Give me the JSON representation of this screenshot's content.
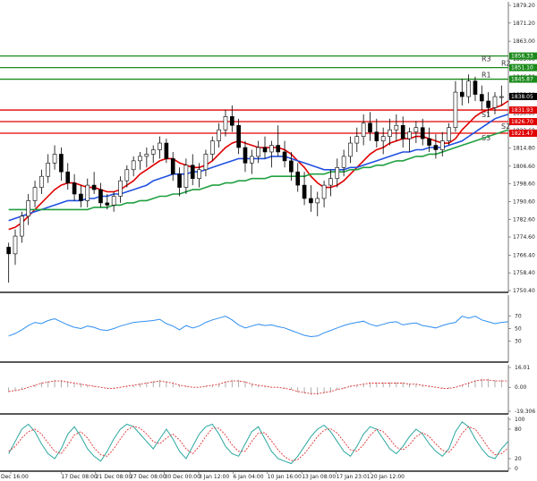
{
  "chart_data": {
    "type": "candlestick",
    "price_axis": {
      "ticks": [
        "1879.20",
        "1871.20",
        "1863.00",
        "1855.00",
        "1846.80",
        "1838.80",
        "1830.60",
        "1822.60",
        "1814.80",
        "1806.60",
        "1798.60",
        "1790.60",
        "1782.60",
        "1774.60",
        "1766.40",
        "1758.40",
        "1750.40"
      ],
      "ylim": [
        1750.4,
        1879.2
      ]
    },
    "current_price": "1838.05",
    "levels": [
      {
        "name": "R3",
        "value": "1856.33",
        "color": "#1a8a1a"
      },
      {
        "name": "R2",
        "value": "1851.10",
        "color": "#1a8a1a"
      },
      {
        "name": "R1",
        "value": "1845.87",
        "color": "#1a8a1a"
      },
      {
        "name": "S1",
        "value": "1831.93",
        "color": "#e00000"
      },
      {
        "name": "S2",
        "value": "1826.70",
        "color": "#e00000"
      },
      {
        "name": "S3",
        "value": "1821.47",
        "color": "#e00000"
      }
    ],
    "x_labels": [
      "Dec 16:00",
      "17 Dec 08:00",
      "21 Dec 08:00",
      "27 Dec 08:00",
      "30 Dec 00:00",
      "3 Jan 12:00",
      "6 Jan 04:00",
      "10 Jan 16:00",
      "13 Jan 08:00",
      "17 Jan 23:01",
      "20 Jan 12:00"
    ],
    "candles": [
      [
        1770,
        1772,
        1754,
        1767
      ],
      [
        1767,
        1778,
        1762,
        1775
      ],
      [
        1775,
        1786,
        1772,
        1784
      ],
      [
        1784,
        1794,
        1780,
        1791
      ],
      [
        1791,
        1800,
        1788,
        1797
      ],
      [
        1797,
        1805,
        1794,
        1802
      ],
      [
        1802,
        1812,
        1799,
        1808
      ],
      [
        1808,
        1816,
        1805,
        1812
      ],
      [
        1812,
        1815,
        1800,
        1804
      ],
      [
        1804,
        1808,
        1796,
        1799
      ],
      [
        1799,
        1803,
        1791,
        1794
      ],
      [
        1794,
        1798,
        1788,
        1791
      ],
      [
        1791,
        1801,
        1788,
        1798
      ],
      [
        1798,
        1804,
        1794,
        1796
      ],
      [
        1796,
        1799,
        1788,
        1790
      ],
      [
        1790,
        1794,
        1787,
        1789
      ],
      [
        1789,
        1795,
        1786,
        1793
      ],
      [
        1793,
        1802,
        1790,
        1800
      ],
      [
        1800,
        1807,
        1797,
        1805
      ],
      [
        1805,
        1811,
        1802,
        1809
      ],
      [
        1809,
        1813,
        1805,
        1811
      ],
      [
        1811,
        1815,
        1806,
        1812
      ],
      [
        1812,
        1816,
        1808,
        1814
      ],
      [
        1814,
        1820,
        1810,
        1817
      ],
      [
        1817,
        1819,
        1808,
        1810
      ],
      [
        1810,
        1813,
        1800,
        1803
      ],
      [
        1803,
        1806,
        1793,
        1797
      ],
      [
        1797,
        1810,
        1794,
        1807
      ],
      [
        1807,
        1812,
        1798,
        1801
      ],
      [
        1801,
        1808,
        1797,
        1805
      ],
      [
        1805,
        1814,
        1802,
        1812
      ],
      [
        1812,
        1820,
        1809,
        1818
      ],
      [
        1818,
        1826,
        1815,
        1823
      ],
      [
        1823,
        1832,
        1820,
        1829
      ],
      [
        1829,
        1834,
        1822,
        1825
      ],
      [
        1825,
        1828,
        1812,
        1815
      ],
      [
        1815,
        1818,
        1804,
        1808
      ],
      [
        1808,
        1814,
        1803,
        1811
      ],
      [
        1811,
        1818,
        1808,
        1815
      ],
      [
        1815,
        1820,
        1810,
        1813
      ],
      [
        1813,
        1818,
        1806,
        1816
      ],
      [
        1816,
        1825,
        1811,
        1813
      ],
      [
        1813,
        1818,
        1806,
        1809
      ],
      [
        1809,
        1813,
        1800,
        1804
      ],
      [
        1804,
        1808,
        1795,
        1798
      ],
      [
        1798,
        1804,
        1789,
        1792
      ],
      [
        1792,
        1798,
        1786,
        1790
      ],
      [
        1790,
        1795,
        1784,
        1792
      ],
      [
        1792,
        1800,
        1788,
        1798
      ],
      [
        1798,
        1805,
        1793,
        1801
      ],
      [
        1801,
        1810,
        1797,
        1806
      ],
      [
        1806,
        1814,
        1802,
        1811
      ],
      [
        1811,
        1820,
        1808,
        1817
      ],
      [
        1817,
        1824,
        1813,
        1820
      ],
      [
        1820,
        1830,
        1816,
        1826
      ],
      [
        1826,
        1831,
        1818,
        1822
      ],
      [
        1822,
        1828,
        1815,
        1818
      ],
      [
        1818,
        1824,
        1812,
        1820
      ],
      [
        1820,
        1828,
        1816,
        1823
      ],
      [
        1823,
        1830,
        1818,
        1825
      ],
      [
        1825,
        1829,
        1815,
        1819
      ],
      [
        1819,
        1824,
        1813,
        1822
      ],
      [
        1822,
        1827,
        1817,
        1824
      ],
      [
        1824,
        1828,
        1816,
        1819
      ],
      [
        1819,
        1824,
        1813,
        1816
      ],
      [
        1816,
        1821,
        1810,
        1814
      ],
      [
        1814,
        1822,
        1811,
        1818
      ],
      [
        1818,
        1826,
        1816,
        1824
      ],
      [
        1824,
        1845,
        1822,
        1840
      ],
      [
        1840,
        1846,
        1834,
        1838
      ],
      [
        1838,
        1848,
        1835,
        1845
      ],
      [
        1845,
        1847,
        1836,
        1839
      ],
      [
        1839,
        1843,
        1832,
        1836
      ],
      [
        1836,
        1840,
        1829,
        1833
      ],
      [
        1833,
        1840,
        1830,
        1838
      ],
      [
        1838,
        1843,
        1834,
        1838
      ]
    ],
    "moving_averages": [
      {
        "color": "#e00000",
        "values": [
          1778,
          1779,
          1781,
          1784,
          1787,
          1790,
          1793,
          1796,
          1798,
          1799,
          1799,
          1798,
          1797,
          1797,
          1796,
          1795,
          1795,
          1796,
          1798,
          1800,
          1803,
          1805,
          1807,
          1809,
          1810,
          1810,
          1808,
          1807,
          1806,
          1806,
          1807,
          1809,
          1812,
          1815,
          1817,
          1818,
          1817,
          1816,
          1815,
          1815,
          1815,
          1815,
          1814,
          1812,
          1809,
          1806,
          1802,
          1799,
          1797,
          1797,
          1798,
          1800,
          1803,
          1806,
          1809,
          1812,
          1814,
          1815,
          1817,
          1818,
          1819,
          1819,
          1820,
          1820,
          1819,
          1818,
          1817,
          1817,
          1819,
          1823,
          1826,
          1829,
          1831,
          1832,
          1833,
          1834,
          1836
        ]
      },
      {
        "color": "#2050e0",
        "values": [
          1782,
          1783,
          1784,
          1785,
          1786,
          1787,
          1788,
          1789,
          1790,
          1791,
          1791,
          1791,
          1792,
          1792,
          1793,
          1793,
          1794,
          1794,
          1795,
          1796,
          1797,
          1798,
          1800,
          1801,
          1802,
          1803,
          1803,
          1803,
          1804,
          1804,
          1805,
          1806,
          1807,
          1808,
          1809,
          1810,
          1810,
          1810,
          1810,
          1810,
          1811,
          1811,
          1811,
          1810,
          1809,
          1808,
          1807,
          1806,
          1805,
          1805,
          1805,
          1805,
          1806,
          1806,
          1807,
          1808,
          1809,
          1810,
          1811,
          1812,
          1813,
          1813,
          1814,
          1814,
          1815,
          1815,
          1815,
          1816,
          1817,
          1818,
          1820,
          1822,
          1824,
          1826,
          1828,
          1829,
          1830
        ]
      },
      {
        "color": "#20a040",
        "values": [
          1787,
          1787,
          1787,
          1787,
          1787,
          1787,
          1787,
          1787,
          1787,
          1787,
          1787,
          1787,
          1787,
          1788,
          1788,
          1788,
          1789,
          1789,
          1790,
          1790,
          1791,
          1791,
          1792,
          1793,
          1793,
          1794,
          1794,
          1795,
          1796,
          1796,
          1797,
          1798,
          1798,
          1799,
          1799,
          1800,
          1800,
          1801,
          1801,
          1801,
          1802,
          1802,
          1802,
          1802,
          1802,
          1802,
          1803,
          1803,
          1803,
          1804,
          1804,
          1804,
          1805,
          1805,
          1806,
          1806,
          1807,
          1807,
          1808,
          1809,
          1809,
          1810,
          1811,
          1811,
          1812,
          1812,
          1813,
          1814,
          1815,
          1816,
          1817,
          1818,
          1819,
          1820,
          1821,
          1822,
          1823
        ]
      }
    ],
    "indicator1": {
      "ticks": [
        "70",
        "50",
        "30"
      ],
      "ylim": [
        0,
        100
      ],
      "values": [
        38,
        42,
        48,
        55,
        60,
        58,
        63,
        66,
        61,
        56,
        52,
        50,
        54,
        52,
        48,
        47,
        50,
        54,
        57,
        60,
        61,
        62,
        63,
        65,
        58,
        54,
        48,
        55,
        51,
        54,
        60,
        64,
        67,
        70,
        64,
        56,
        51,
        54,
        57,
        55,
        56,
        53,
        51,
        47,
        43,
        39,
        37,
        38,
        43,
        47,
        51,
        55,
        58,
        60,
        62,
        57,
        54,
        57,
        60,
        61,
        56,
        58,
        59,
        55,
        53,
        51,
        55,
        58,
        60,
        70,
        67,
        70,
        64,
        61,
        58,
        60,
        61
      ]
    },
    "indicator2": {
      "ticks": [
        "16.01",
        "0.00",
        "-19.306"
      ],
      "ylim": [
        -19.306,
        16.01
      ],
      "values": [
        -4,
        -3,
        -2,
        0,
        2,
        4,
        5,
        6,
        6,
        5,
        4,
        3,
        2,
        1,
        0,
        -1,
        -1,
        0,
        1,
        2,
        3,
        4,
        5,
        6,
        5,
        4,
        2,
        1,
        0,
        0,
        1,
        2,
        3,
        5,
        6,
        6,
        5,
        3,
        2,
        1,
        0,
        0,
        -1,
        -2,
        -4,
        -5,
        -6,
        -6,
        -5,
        -4,
        -2,
        -1,
        1,
        2,
        3,
        4,
        4,
        4,
        4,
        4,
        4,
        3,
        3,
        2,
        1,
        0,
        -1,
        -1,
        0,
        2,
        4,
        6,
        7,
        7,
        6,
        6,
        6
      ]
    },
    "indicator3": {
      "ticks": [
        "100",
        "80",
        "20",
        "0"
      ],
      "ylim": [
        0,
        100
      ],
      "k": [
        30,
        55,
        80,
        90,
        75,
        50,
        30,
        20,
        40,
        70,
        85,
        65,
        40,
        25,
        15,
        35,
        60,
        80,
        90,
        85,
        70,
        55,
        40,
        60,
        80,
        60,
        35,
        20,
        45,
        70,
        85,
        90,
        70,
        45,
        30,
        25,
        50,
        75,
        85,
        60,
        35,
        20,
        15,
        10,
        25,
        45,
        65,
        80,
        88,
        75,
        55,
        35,
        25,
        45,
        70,
        85,
        80,
        60,
        40,
        30,
        45,
        65,
        80,
        70,
        50,
        35,
        25,
        40,
        75,
        95,
        85,
        60,
        40,
        25,
        20,
        40,
        55
      ],
      "d": [
        35,
        45,
        62,
        75,
        80,
        70,
        52,
        35,
        30,
        48,
        68,
        75,
        62,
        42,
        28,
        25,
        40,
        60,
        78,
        86,
        82,
        70,
        55,
        50,
        62,
        70,
        58,
        40,
        30,
        45,
        65,
        82,
        82,
        68,
        48,
        35,
        35,
        55,
        72,
        73,
        56,
        38,
        24,
        16,
        18,
        30,
        47,
        65,
        78,
        81,
        72,
        55,
        38,
        35,
        48,
        67,
        80,
        75,
        60,
        43,
        38,
        48,
        65,
        73,
        65,
        50,
        37,
        33,
        48,
        72,
        85,
        80,
        62,
        42,
        28,
        30,
        42
      ]
    }
  }
}
